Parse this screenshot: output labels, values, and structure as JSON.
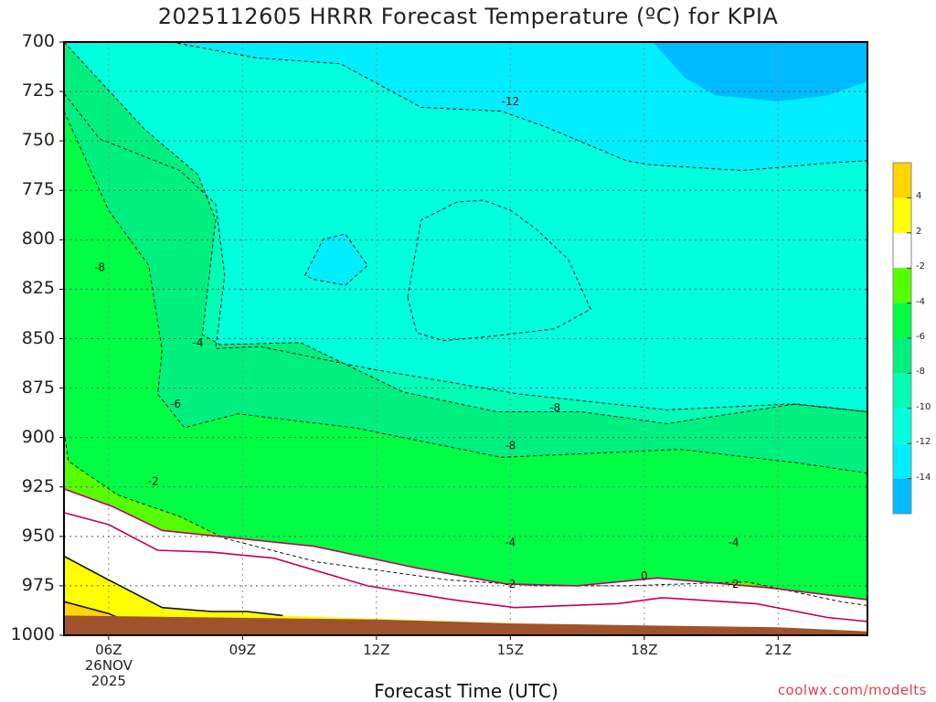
{
  "title": "2025112605 HRRR Forecast Temperature (ºC) for KPIA",
  "xlabel": "Forecast Time (UTC)",
  "credit": "coolwx.com/modelts",
  "date_line1": "26NOV",
  "date_line2": "2025",
  "chart_data": {
    "type": "contour",
    "title": "2025112605 HRRR Forecast Temperature (ºC) for KPIA",
    "xlabel": "Forecast Time (UTC)",
    "ylabel": "",
    "x_ticks": [
      "06Z",
      "09Z",
      "12Z",
      "15Z",
      "18Z",
      "21Z"
    ],
    "x_tick_hours": [
      6,
      9,
      12,
      15,
      18,
      21
    ],
    "xlim_hours": [
      5,
      23
    ],
    "y_ticks": [
      700,
      725,
      750,
      775,
      800,
      825,
      850,
      875,
      900,
      925,
      950,
      975,
      1000
    ],
    "ylim_hpa": [
      700,
      1000
    ],
    "y_inverted": true,
    "grid": true,
    "colorbar": {
      "labels": [
        "4",
        "2",
        "-2",
        "-4",
        "-6",
        "-8",
        "-10",
        "-12",
        "-14"
      ],
      "bins": [
        {
          "range": "> 4",
          "color": "#ffd400"
        },
        {
          "range": "2 to 4",
          "color": "#ffff00"
        },
        {
          "range": "-2 to 2",
          "color": "#ffffff"
        },
        {
          "range": "-4 to -2",
          "color": "#55ff00"
        },
        {
          "range": "-6 to -4",
          "color": "#00ff44"
        },
        {
          "range": "-8 to -6",
          "color": "#00f080"
        },
        {
          "range": "-10 to -8",
          "color": "#00ffb4"
        },
        {
          "range": "-12 to -10",
          "color": "#00ffdd"
        },
        {
          "range": "-14 to -12",
          "color": "#00eeff"
        },
        {
          "range": "< -14",
          "color": "#00bbff"
        }
      ]
    },
    "contours": [
      {
        "level": -12,
        "points": [
          [
            7.4,
            700
          ],
          [
            9.3,
            708
          ],
          [
            11.2,
            711
          ],
          [
            13.0,
            733
          ],
          [
            14.8,
            735
          ],
          [
            15.8,
            743
          ],
          [
            17.6,
            760
          ],
          [
            18.1,
            762
          ],
          [
            20.2,
            765
          ],
          [
            22.2,
            761
          ],
          [
            23.0,
            760
          ]
        ]
      },
      {
        "level": -10,
        "points": [
          [
            5.0,
            726
          ],
          [
            5.8,
            749
          ],
          [
            7.6,
            765
          ],
          [
            8.4,
            782
          ],
          [
            8.6,
            818
          ],
          [
            8.4,
            855
          ],
          [
            9.4,
            854
          ],
          [
            11.8,
            865
          ],
          [
            15.2,
            878
          ],
          [
            18.5,
            886
          ],
          [
            21.3,
            883
          ],
          [
            23.0,
            887
          ]
        ]
      },
      {
        "level": -8,
        "points": [
          [
            5.0,
            700
          ],
          [
            6.8,
            744
          ],
          [
            8.0,
            767
          ],
          [
            8.4,
            790
          ],
          [
            8.1,
            848
          ],
          [
            8.5,
            853
          ],
          [
            10.3,
            852
          ],
          [
            12.6,
            877
          ],
          [
            14.7,
            887
          ],
          [
            16.6,
            887
          ],
          [
            18.5,
            893
          ],
          [
            21.4,
            883
          ],
          [
            23.0,
            887
          ]
        ]
      },
      {
        "level": -6,
        "points": [
          [
            5.0,
            735
          ],
          [
            6.0,
            785
          ],
          [
            6.9,
            813
          ],
          [
            7.2,
            856
          ],
          [
            7.1,
            878
          ],
          [
            7.7,
            895
          ],
          [
            8.9,
            888
          ],
          [
            11.5,
            895
          ],
          [
            14.8,
            910
          ],
          [
            18.8,
            906
          ],
          [
            21.5,
            913
          ],
          [
            23.0,
            918
          ]
        ]
      },
      {
        "level": -4,
        "points": [
          [
            5.0,
            897
          ],
          [
            5.1,
            912
          ],
          [
            6.2,
            929
          ],
          [
            7.6,
            940
          ],
          [
            8.6,
            951
          ],
          [
            10.7,
            963
          ],
          [
            13.6,
            972
          ],
          [
            15.6,
            975
          ],
          [
            17.6,
            975
          ],
          [
            20.3,
            973
          ],
          [
            22.4,
            983
          ],
          [
            23.0,
            985
          ]
        ]
      },
      {
        "level": -2,
        "points": [
          [
            5.0,
            926
          ],
          [
            6.1,
            935
          ],
          [
            7.2,
            947
          ],
          [
            8.9,
            951
          ],
          [
            10.6,
            955
          ],
          [
            12.9,
            966
          ],
          [
            14.9,
            974
          ],
          [
            16.5,
            975
          ],
          [
            18.3,
            971
          ],
          [
            20.8,
            976
          ],
          [
            23.0,
            982
          ]
        ]
      },
      {
        "level": 0,
        "points": [
          [
            5.0,
            938
          ],
          [
            6.0,
            944
          ],
          [
            7.1,
            957
          ],
          [
            8.3,
            958
          ],
          [
            9.7,
            961
          ],
          [
            11.8,
            975
          ],
          [
            13.7,
            982
          ],
          [
            15.1,
            986
          ],
          [
            17.4,
            984
          ],
          [
            18.4,
            981
          ],
          [
            20.5,
            984
          ],
          [
            22.1,
            991
          ],
          [
            23.0,
            993
          ]
        ]
      },
      {
        "level": 2,
        "points": [
          [
            5.0,
            960
          ],
          [
            6.0,
            972
          ],
          [
            7.2,
            986
          ],
          [
            8.3,
            988
          ],
          [
            9.1,
            988
          ],
          [
            9.9,
            990
          ]
        ]
      },
      {
        "level": 4,
        "points": [
          [
            5.0,
            983
          ],
          [
            6.0,
            989
          ],
          [
            6.3,
            992
          ]
        ]
      }
    ],
    "contour_labels": [
      "-12",
      "-8",
      "-4",
      "-8",
      "-6",
      "-2",
      "-8",
      "-4",
      "-4",
      "-2",
      "-2",
      "0"
    ],
    "surface_pressure_hpa": [
      {
        "hour": 5,
        "hpa": 990
      },
      {
        "hour": 12,
        "hpa": 992
      },
      {
        "hour": 15,
        "hpa": 994
      },
      {
        "hour": 18,
        "hpa": 995
      },
      {
        "hour": 21,
        "hpa": 996
      },
      {
        "hour": 23,
        "hpa": 998
      }
    ]
  }
}
